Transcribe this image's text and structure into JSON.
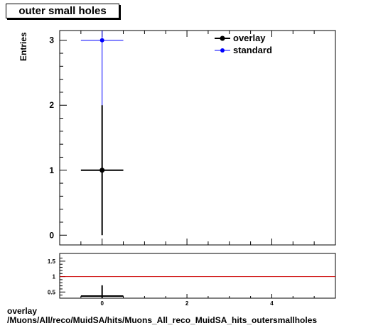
{
  "header": {
    "title": "outer small holes"
  },
  "footer": {
    "line1": "overlay",
    "line2": "/Muons/All/reco/MuidSA/hits/Muons_All_reco_MuidSA_hits_outersmallholes"
  },
  "colors": {
    "overlay": "#000000",
    "standard": "#0000ff",
    "ratio_line": "#cc0000"
  },
  "chart_data": [
    {
      "type": "scatter",
      "title": "outer small holes",
      "xlabel": "",
      "ylabel": "Entries",
      "xlim": [
        -1,
        5.5
      ],
      "ylim": [
        -0.15,
        3.15
      ],
      "y_ticks": [
        0,
        1,
        2,
        3
      ],
      "x_ticks": [
        0,
        2,
        4
      ],
      "legend_position": "top-right",
      "series": [
        {
          "name": "overlay",
          "x": [
            0
          ],
          "y": [
            1
          ],
          "xerr": [
            0.5
          ],
          "yerr": [
            1
          ]
        },
        {
          "name": "standard",
          "x": [
            0
          ],
          "y": [
            3
          ],
          "xerr": [
            0.5
          ],
          "yerr": [
            1.732
          ]
        }
      ]
    },
    {
      "type": "scatter",
      "xlim": [
        -1,
        5.5
      ],
      "ylim": [
        0.3,
        1.75
      ],
      "y_ticks": [
        0.5,
        1,
        1.5
      ],
      "x_ticks": [
        0,
        2,
        4
      ],
      "reference_line": 1,
      "series": [
        {
          "x": [
            0
          ],
          "y": [
            0.333
          ],
          "xerr": [
            0.5
          ],
          "yerr": [
            0.385
          ]
        }
      ]
    }
  ]
}
